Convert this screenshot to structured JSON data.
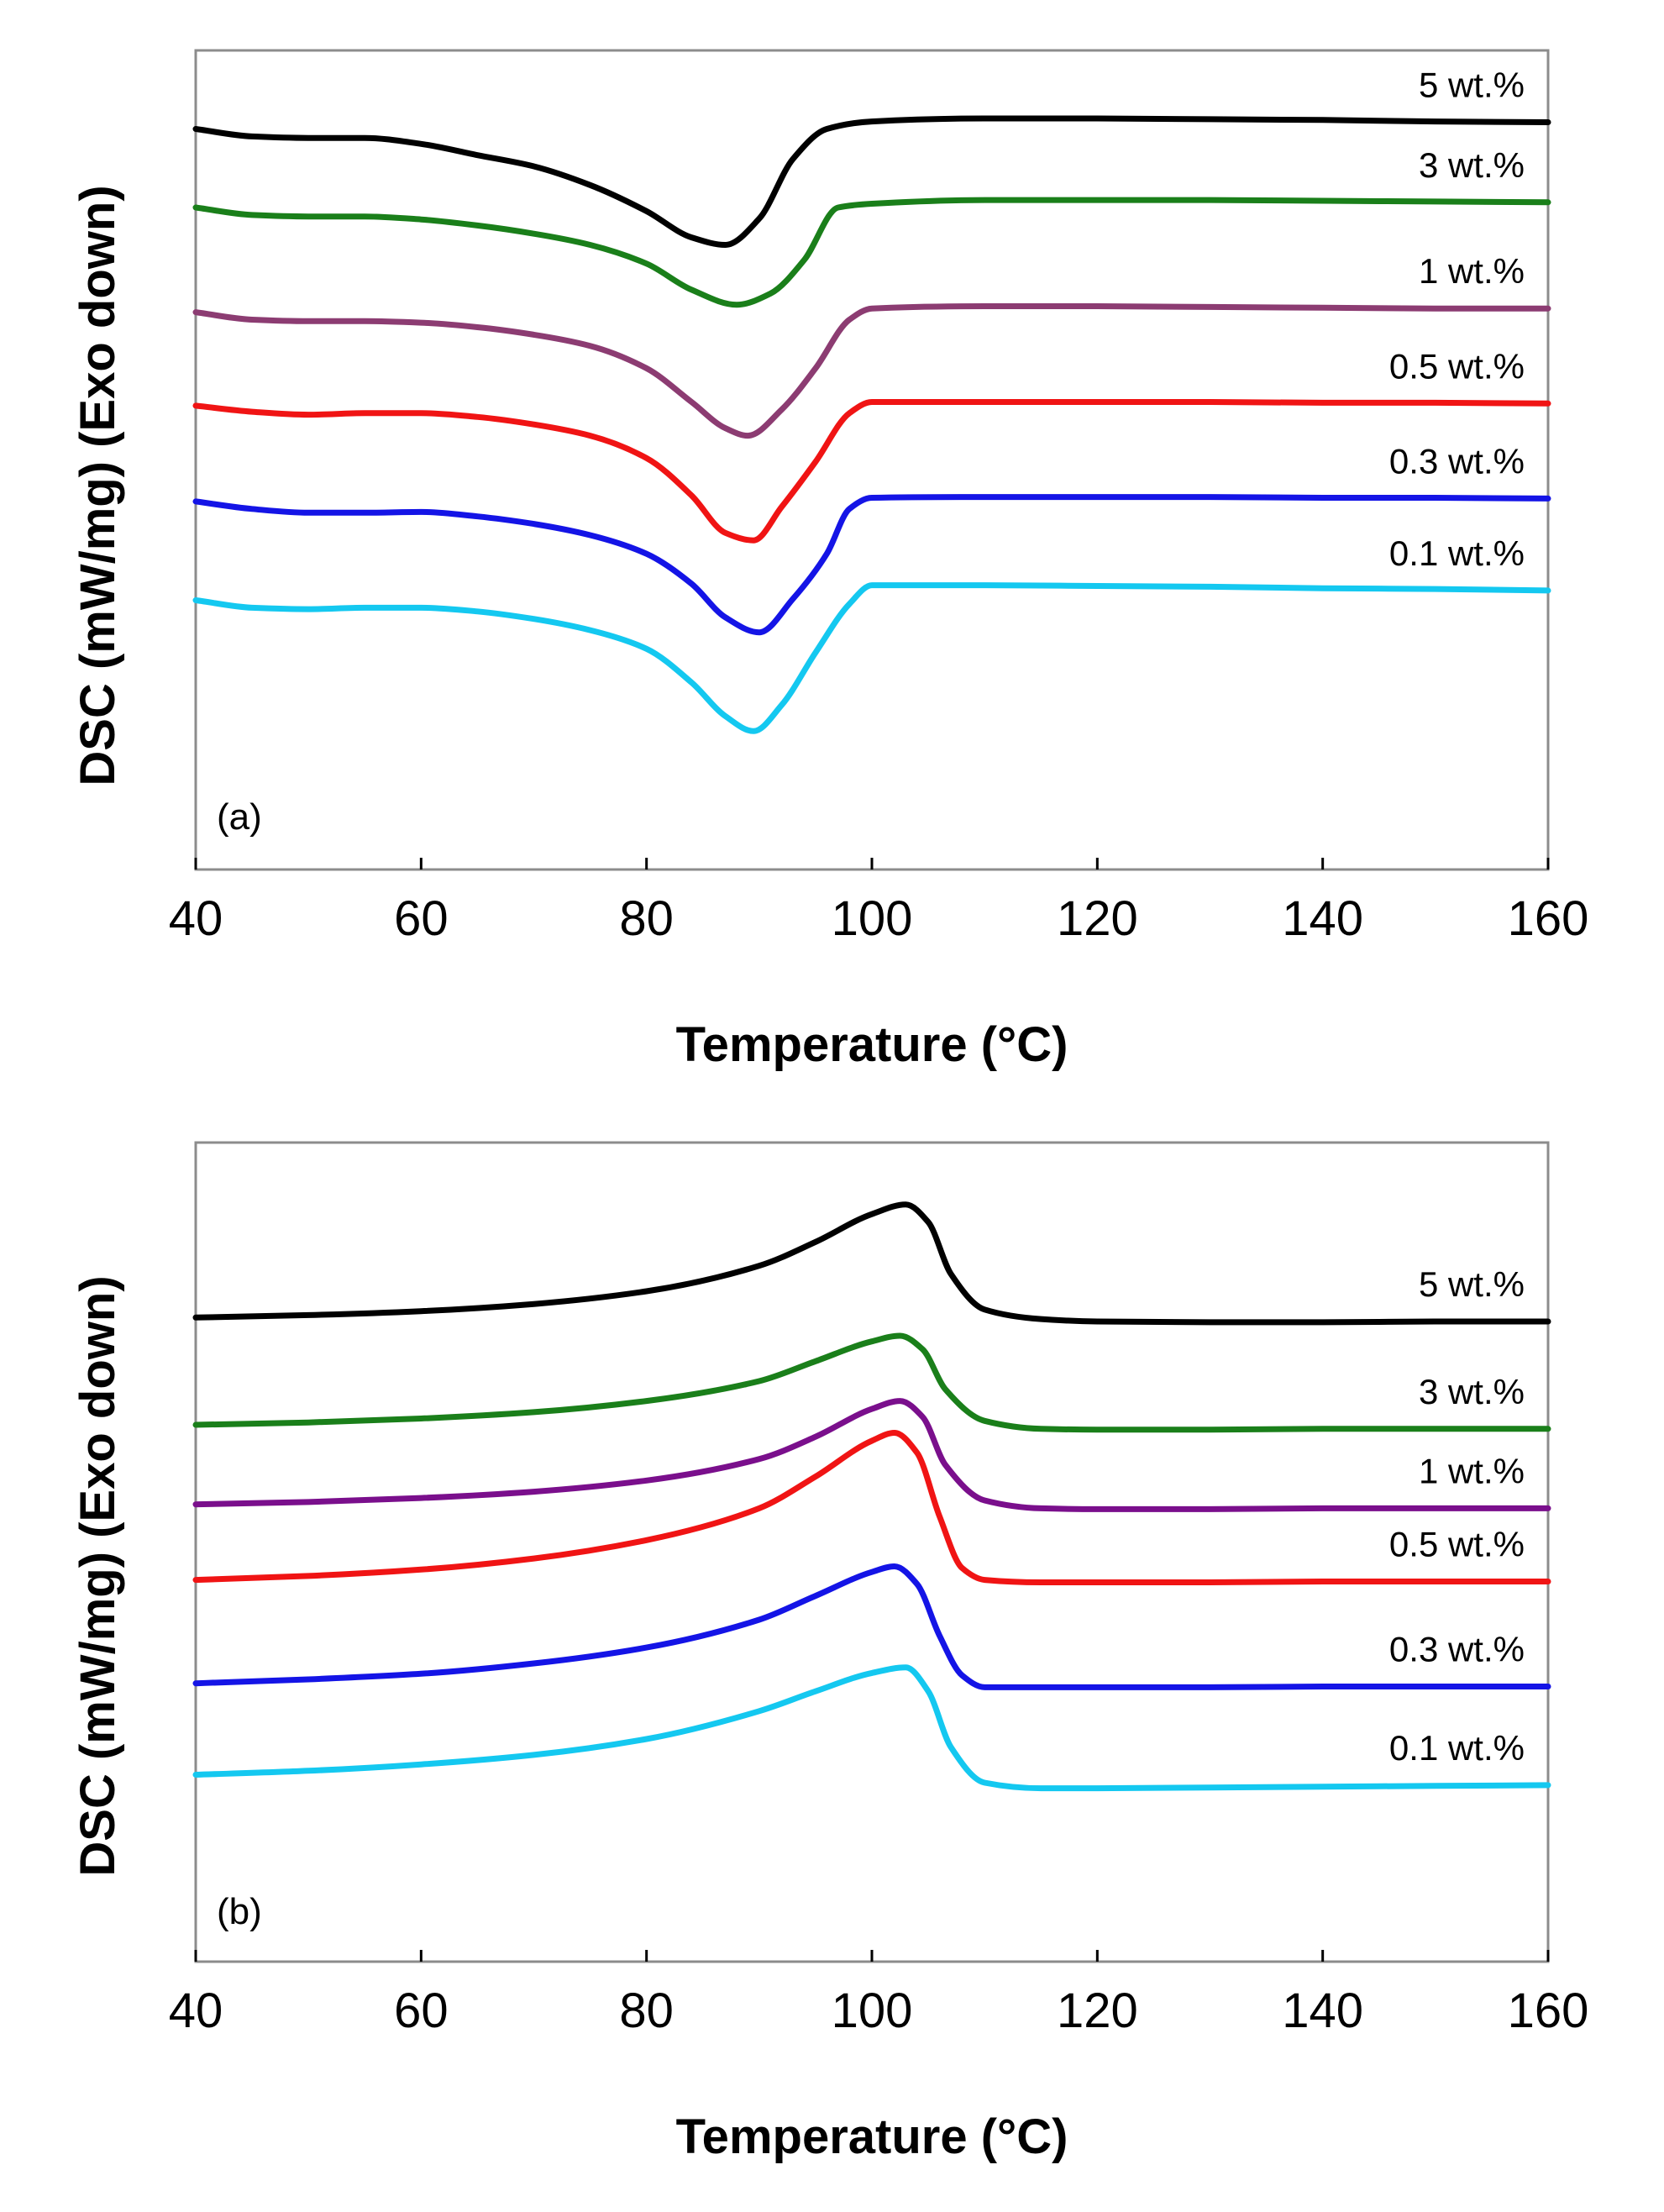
{
  "chart_data": [
    {
      "type": "line",
      "panel_label": "(a)",
      "xlabel": "Temperature (°C)",
      "ylabel": "DSC (mW/mg) (Exo down)",
      "xlim": [
        40,
        160
      ],
      "ylim": [
        -9.9,
        1.05
      ],
      "xticks": [
        40,
        60,
        80,
        100,
        120,
        140,
        160
      ],
      "yticks_shown": false,
      "grid": false,
      "series": [
        {
          "name": "5 wt.%",
          "color": "#000000",
          "offset": 0,
          "x": [
            40,
            45,
            50,
            55,
            60,
            65,
            70,
            75,
            80,
            84,
            87,
            90,
            93,
            96,
            100,
            110,
            120,
            130,
            140,
            150,
            160
          ],
          "y": [
            0.0,
            -0.1,
            -0.12,
            -0.12,
            -0.2,
            -0.35,
            -0.5,
            -0.75,
            -1.1,
            -1.45,
            -1.55,
            -1.2,
            -0.4,
            0.0,
            0.1,
            0.14,
            0.14,
            0.13,
            0.12,
            0.1,
            0.09
          ]
        },
        {
          "name": "3 wt.%",
          "color": "#1a7f1a",
          "offset": -1.05,
          "x": [
            40,
            45,
            50,
            55,
            60,
            65,
            70,
            75,
            80,
            84,
            88,
            91,
            94,
            97,
            100,
            110,
            120,
            130,
            140,
            150,
            160
          ],
          "y": [
            0.0,
            -0.1,
            -0.12,
            -0.12,
            -0.16,
            -0.24,
            -0.35,
            -0.5,
            -0.75,
            -1.1,
            -1.3,
            -1.15,
            -0.7,
            0.0,
            0.05,
            0.1,
            0.1,
            0.1,
            0.09,
            0.08,
            0.07
          ]
        },
        {
          "name": "1 wt.%",
          "color": "#8c3c72",
          "offset": -2.45,
          "x": [
            40,
            45,
            50,
            55,
            60,
            65,
            70,
            75,
            80,
            84,
            87,
            89,
            92,
            95,
            98,
            100,
            110,
            120,
            130,
            140,
            150,
            160
          ],
          "y": [
            0.0,
            -0.1,
            -0.12,
            -0.12,
            -0.14,
            -0.2,
            -0.3,
            -0.45,
            -0.75,
            -1.2,
            -1.55,
            -1.65,
            -1.3,
            -0.75,
            -0.1,
            0.05,
            0.08,
            0.08,
            0.07,
            0.06,
            0.05,
            0.05
          ]
        },
        {
          "name": "0.5 wt.%",
          "color": "#f01414",
          "offset": -3.7,
          "x": [
            40,
            45,
            50,
            55,
            60,
            65,
            70,
            75,
            80,
            84,
            87,
            89.5,
            92,
            95,
            98,
            100,
            110,
            120,
            130,
            140,
            150,
            160
          ],
          "y": [
            0.0,
            -0.08,
            -0.12,
            -0.1,
            -0.1,
            -0.15,
            -0.25,
            -0.4,
            -0.7,
            -1.2,
            -1.7,
            -1.8,
            -1.35,
            -0.75,
            -0.1,
            0.05,
            0.05,
            0.05,
            0.05,
            0.04,
            0.04,
            0.03
          ]
        },
        {
          "name": "0.3 wt.%",
          "color": "#1414e6",
          "offset": -4.98,
          "x": [
            40,
            45,
            50,
            55,
            60,
            65,
            70,
            75,
            80,
            84,
            87,
            90,
            93,
            96,
            98,
            100,
            110,
            120,
            130,
            140,
            150,
            160
          ],
          "y": [
            0.0,
            -0.1,
            -0.15,
            -0.15,
            -0.14,
            -0.2,
            -0.3,
            -0.45,
            -0.7,
            -1.1,
            -1.55,
            -1.75,
            -1.3,
            -0.7,
            -0.1,
            0.05,
            0.06,
            0.06,
            0.06,
            0.05,
            0.05,
            0.04
          ]
        },
        {
          "name": "0.1 wt.%",
          "color": "#14c8f0",
          "offset": -6.3,
          "x": [
            40,
            45,
            50,
            55,
            60,
            65,
            70,
            75,
            80,
            84,
            87,
            89.5,
            92,
            95,
            98,
            100,
            110,
            120,
            130,
            140,
            150,
            160
          ],
          "y": [
            0.0,
            -0.1,
            -0.12,
            -0.1,
            -0.1,
            -0.15,
            -0.25,
            -0.4,
            -0.65,
            -1.1,
            -1.55,
            -1.75,
            -1.4,
            -0.7,
            -0.05,
            0.2,
            0.2,
            0.19,
            0.18,
            0.16,
            0.15,
            0.13
          ]
        }
      ]
    },
    {
      "type": "line",
      "panel_label": "(b)",
      "xlabel": "Temperature (°C)",
      "ylabel": "DSC (mW/mg) (Exo down)",
      "xlim": [
        40,
        160
      ],
      "ylim": [
        -8.1,
        2.2
      ],
      "xticks": [
        40,
        60,
        80,
        100,
        120,
        140,
        160
      ],
      "yticks_shown": false,
      "grid": false,
      "series": [
        {
          "name": "5 wt.%",
          "color": "#000000",
          "offset": 0,
          "x": [
            40,
            50,
            60,
            70,
            80,
            90,
            95,
            100,
            103,
            105,
            107,
            110,
            115,
            120,
            130,
            140,
            150,
            160
          ],
          "y": [
            0.0,
            0.03,
            0.08,
            0.17,
            0.33,
            0.65,
            0.95,
            1.3,
            1.42,
            1.2,
            0.55,
            0.1,
            -0.02,
            -0.05,
            -0.06,
            -0.06,
            -0.05,
            -0.05
          ]
        },
        {
          "name": "3 wt.%",
          "color": "#1a7f1a",
          "offset": -1.35,
          "x": [
            40,
            50,
            60,
            70,
            80,
            90,
            95,
            100,
            102.5,
            104.5,
            106.5,
            110,
            115,
            120,
            130,
            140,
            150,
            160
          ],
          "y": [
            0.0,
            0.03,
            0.08,
            0.16,
            0.3,
            0.55,
            0.8,
            1.05,
            1.12,
            0.95,
            0.45,
            0.05,
            -0.05,
            -0.06,
            -0.06,
            -0.05,
            -0.05,
            -0.05
          ]
        },
        {
          "name": "1 wt.%",
          "color": "#7a0f8c",
          "offset": -2.35,
          "x": [
            40,
            50,
            60,
            70,
            80,
            90,
            95,
            100,
            102.5,
            104.5,
            106.5,
            110,
            115,
            120,
            130,
            140,
            150,
            160
          ],
          "y": [
            0.0,
            0.03,
            0.08,
            0.16,
            0.3,
            0.57,
            0.85,
            1.2,
            1.3,
            1.1,
            0.5,
            0.05,
            -0.05,
            -0.06,
            -0.06,
            -0.05,
            -0.05,
            -0.05
          ]
        },
        {
          "name": "0.5 wt.%",
          "color": "#f01414",
          "offset": -3.3,
          "x": [
            40,
            50,
            60,
            70,
            80,
            90,
            95,
            100,
            102,
            104,
            106,
            108,
            110,
            115,
            120,
            130,
            140,
            150,
            160
          ],
          "y": [
            0.0,
            0.05,
            0.13,
            0.27,
            0.5,
            0.9,
            1.3,
            1.75,
            1.85,
            1.6,
            0.8,
            0.15,
            0.0,
            -0.03,
            -0.03,
            -0.03,
            -0.02,
            -0.02,
            -0.02
          ]
        },
        {
          "name": "0.3 wt.%",
          "color": "#1414e6",
          "offset": -4.6,
          "x": [
            40,
            50,
            60,
            70,
            80,
            90,
            95,
            100,
            102,
            104,
            106,
            108,
            110,
            115,
            120,
            130,
            140,
            150,
            160
          ],
          "y": [
            0.0,
            0.05,
            0.12,
            0.25,
            0.45,
            0.8,
            1.1,
            1.4,
            1.47,
            1.25,
            0.6,
            0.1,
            -0.05,
            -0.05,
            -0.05,
            -0.05,
            -0.04,
            -0.04,
            -0.04
          ]
        },
        {
          "name": "0.1 wt.%",
          "color": "#14c8f0",
          "offset": -5.75,
          "x": [
            40,
            50,
            60,
            70,
            80,
            90,
            95,
            100,
            103,
            105,
            107,
            110,
            115,
            120,
            130,
            140,
            150,
            160
          ],
          "y": [
            0.0,
            0.05,
            0.13,
            0.25,
            0.45,
            0.8,
            1.05,
            1.28,
            1.35,
            1.05,
            0.35,
            -0.1,
            -0.17,
            -0.17,
            -0.16,
            -0.15,
            -0.14,
            -0.13
          ]
        }
      ]
    }
  ]
}
